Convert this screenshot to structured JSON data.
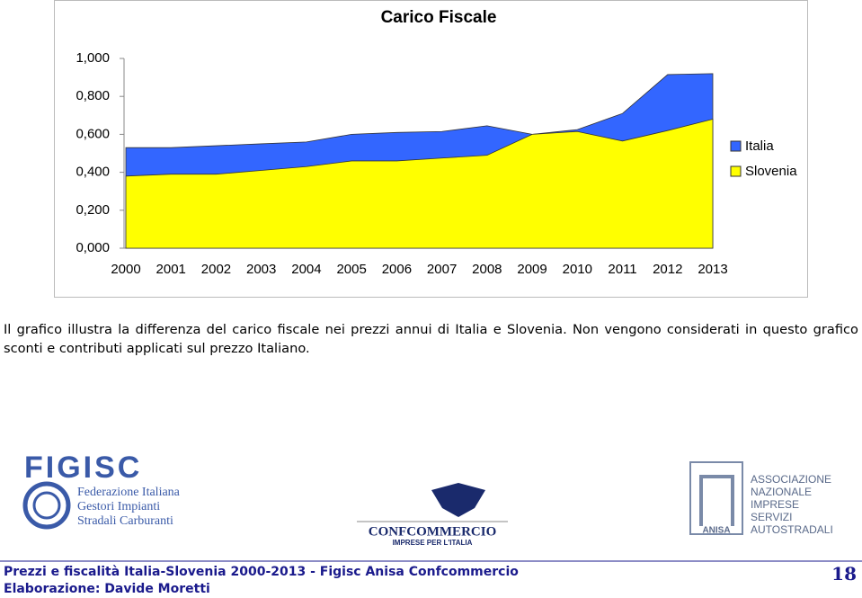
{
  "chart_data": {
    "type": "area",
    "title": "Carico Fiscale",
    "categories": [
      "2000",
      "2001",
      "2002",
      "2003",
      "2004",
      "2005",
      "2006",
      "2007",
      "2008",
      "2009",
      "2010",
      "2011",
      "2012",
      "2013"
    ],
    "series": [
      {
        "name": "Italia",
        "color": "#3366ff",
        "values": [
          0.53,
          0.53,
          0.54,
          0.55,
          0.56,
          0.6,
          0.61,
          0.615,
          0.645,
          0.6,
          0.625,
          0.71,
          0.915,
          0.92
        ]
      },
      {
        "name": "Slovenia",
        "color": "#ffff00",
        "values": [
          0.38,
          0.39,
          0.39,
          0.41,
          0.43,
          0.46,
          0.46,
          0.475,
          0.49,
          0.6,
          0.615,
          0.565,
          0.62,
          0.68
        ]
      }
    ],
    "ylim": [
      0,
      1
    ],
    "yticks": [
      {
        "value": 0,
        "label": "0,000"
      },
      {
        "value": 0.2,
        "label": "0,200"
      },
      {
        "value": 0.4,
        "label": "0,400"
      },
      {
        "value": 0.6,
        "label": "0,600"
      },
      {
        "value": 0.8,
        "label": "0,800"
      },
      {
        "value": 1,
        "label": "1,000"
      }
    ],
    "legend": "right",
    "grid": false
  },
  "caption": "Il grafico illustra la differenza del carico fiscale nei prezzi annui di Italia e Slovenia. Non vengono considerati in questo grafico sconti e contributi applicati sul prezzo Italiano.",
  "logos": {
    "figisc": {
      "name": "FIGISC",
      "lines": [
        "Federazione Italiana",
        "Gestori Impianti",
        "Stradali Carburanti"
      ]
    },
    "confcommercio": {
      "name": "CONFCOMMERCIO",
      "tagline": "IMPRESE PER L'ITALIA"
    },
    "anisa": {
      "name": "ANISA",
      "lines": [
        "ASSOCIAZIONE",
        "NAZIONALE",
        "IMPRESE",
        "SERVIZI",
        "AUTOSTRADALI"
      ]
    }
  },
  "footer": {
    "title": "Prezzi e fiscalità Italia-Slovenia 2000-2013 - Figisc Anisa Confcommercio",
    "author": "Elaborazione: Davide Moretti",
    "page": "18"
  }
}
